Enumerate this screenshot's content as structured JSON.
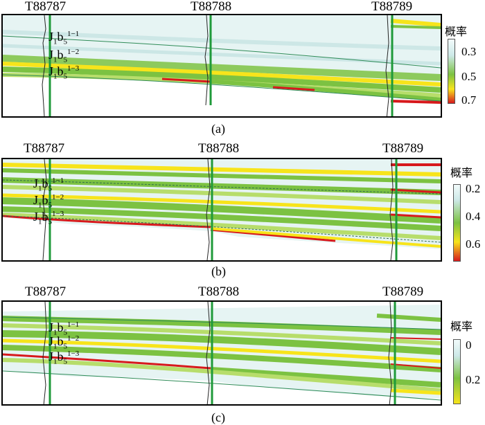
{
  "panels": [
    {
      "id": "a",
      "caption": "(a)",
      "wells": [
        "T88787",
        "T88788",
        "T88789"
      ],
      "legend_title": "概率",
      "legend_ticks": [
        "0.3",
        "0.5",
        "0.7"
      ],
      "colorbar": {
        "top": "#f2fbfb",
        "mid": "#7cc242",
        "mid2": "#f7e41b",
        "bottom": "#d7191c"
      }
    },
    {
      "id": "b",
      "caption": "(b)",
      "wells": [
        "T88787",
        "T88788",
        "T88789"
      ],
      "legend_title": "概率",
      "legend_ticks": [
        "0.2",
        "0.4",
        "0.6"
      ],
      "colorbar": {
        "top": "#f2fbfb",
        "mid": "#7cc242",
        "mid2": "#f7e41b",
        "bottom": "#d7191c"
      }
    },
    {
      "id": "c",
      "caption": "(c)",
      "wells": [
        "T88787",
        "T88788",
        "T88789"
      ],
      "legend_title": "概率",
      "legend_ticks": [
        "0",
        "0.2"
      ],
      "colorbar": {
        "top": "#f2fbfb",
        "mid": "#7cc242",
        "bottom": "#f7e41b"
      }
    }
  ],
  "zones": [
    {
      "base": "J",
      "sub1": "1",
      "mid": "b",
      "sub2": "5",
      "sup": "1−1"
    },
    {
      "base": "J",
      "sub1": "1",
      "mid": "b",
      "sub2": "5",
      "sup": "1−2"
    },
    {
      "base": "J",
      "sub1": "1",
      "mid": "b",
      "sub2": "5",
      "sup": "1−3"
    }
  ]
}
